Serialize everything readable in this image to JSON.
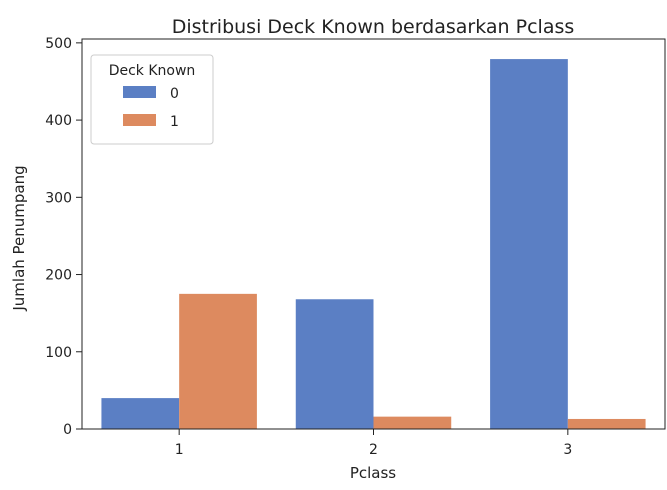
{
  "chart_data": {
    "type": "bar",
    "title": "Distribusi Deck Known berdasarkan Pclass",
    "xlabel": "Pclass",
    "ylabel": "Jumlah Penumpang",
    "categories": [
      "1",
      "2",
      "3"
    ],
    "series": [
      {
        "name": "0",
        "values": [
          40,
          168,
          479
        ],
        "color": "#5b7fc4"
      },
      {
        "name": "1",
        "values": [
          175,
          16,
          13
        ],
        "color": "#dd8a5f"
      }
    ],
    "ylim": [
      0,
      505
    ],
    "yticks": [
      0,
      100,
      200,
      300,
      400,
      500
    ],
    "legend": {
      "title": "Deck Known",
      "position": "top-left"
    },
    "grid": false
  }
}
